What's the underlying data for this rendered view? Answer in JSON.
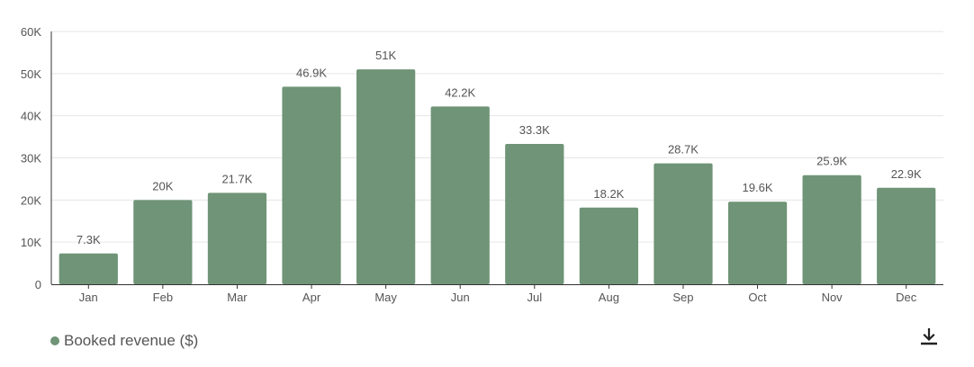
{
  "chart_data": {
    "type": "bar",
    "categories": [
      "Jan",
      "Feb",
      "Mar",
      "Apr",
      "May",
      "Jun",
      "Jul",
      "Aug",
      "Sep",
      "Oct",
      "Nov",
      "Dec"
    ],
    "series": [
      {
        "name": "Booked revenue ($)",
        "values": [
          7300,
          20000,
          21700,
          46900,
          51000,
          42200,
          33300,
          18200,
          28700,
          19600,
          25900,
          22900
        ],
        "labels": [
          "7.3K",
          "20K",
          "21.7K",
          "46.9K",
          "51K",
          "42.2K",
          "33.3K",
          "18.2K",
          "28.7K",
          "19.6K",
          "25.9K",
          "22.9K"
        ],
        "color": "#6f9477"
      }
    ],
    "ylim": [
      0,
      60000
    ],
    "yticks": [
      0,
      10000,
      20000,
      30000,
      40000,
      50000,
      60000
    ],
    "ytick_labels": [
      "0",
      "10K",
      "20K",
      "30K",
      "40K",
      "50K",
      "60K"
    ],
    "grid": true,
    "legend_position": "bottom-left"
  },
  "legend": {
    "label": "Booked revenue ($)",
    "color": "#6f9477"
  },
  "toolbar": {
    "download_icon": "download-icon"
  }
}
